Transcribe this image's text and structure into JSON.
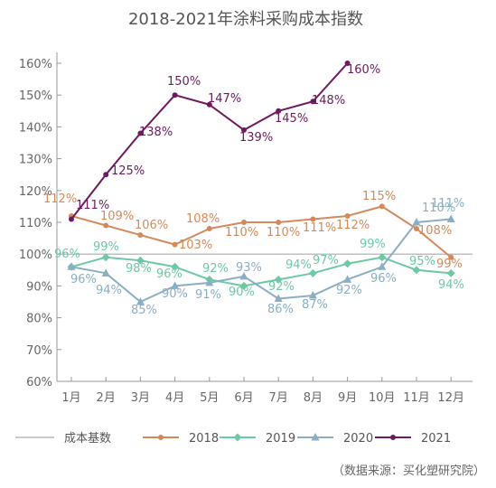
{
  "chart_data": {
    "type": "line",
    "title": "2018-2021年涂料采购成本指数",
    "categories": [
      "1月",
      "2月",
      "3月",
      "4月",
      "5月",
      "6月",
      "7月",
      "8月",
      "9月",
      "10月",
      "11月",
      "12月"
    ],
    "ylim": [
      60,
      160
    ],
    "yticks": [
      "60%",
      "70%",
      "80%",
      "90%",
      "100%",
      "110%",
      "120%",
      "130%",
      "140%",
      "150%",
      "160%"
    ],
    "baseline": {
      "name": "成本基数",
      "value": 100,
      "color": "#aaaaaa"
    },
    "series": [
      {
        "name": "2018",
        "color": "#d4895a",
        "marker": "circle",
        "values": [
          112,
          109,
          106,
          103,
          108,
          110,
          110,
          111,
          112,
          115,
          108,
          99
        ],
        "labels": [
          "112%",
          "109%",
          "106%",
          "103%",
          "108%",
          "110%",
          "110%",
          "111%",
          "112%",
          "115%",
          "108%",
          "99%"
        ]
      },
      {
        "name": "2019",
        "color": "#6cc9a4",
        "marker": "diamond",
        "values": [
          96,
          99,
          98,
          96,
          92,
          90,
          92,
          94,
          97,
          99,
          95,
          94
        ],
        "labels": [
          "96%",
          "99%",
          "98%",
          "96%",
          "92%",
          "90%",
          "92%",
          "94%",
          "97%",
          "99%",
          "95%",
          "94%"
        ]
      },
      {
        "name": "2020",
        "color": "#8aaec4",
        "marker": "triangle",
        "values": [
          96,
          94,
          85,
          90,
          91,
          93,
          86,
          87,
          92,
          96,
          110,
          111
        ],
        "labels": [
          "96%",
          "94%",
          "85%",
          "90%",
          "91%",
          "93%",
          "86%",
          "87%",
          "92%",
          "96%",
          "110%",
          "111%"
        ]
      },
      {
        "name": "2021",
        "color": "#6e1a5e",
        "marker": "circle",
        "values": [
          111,
          125,
          138,
          150,
          147,
          139,
          145,
          148,
          160,
          null,
          null,
          null
        ],
        "labels": [
          "111%",
          "125%",
          "138%",
          "150%",
          "147%",
          "139%",
          "145%",
          "148%",
          "160%",
          null,
          null,
          null
        ]
      }
    ],
    "legend": "bottom",
    "grid": false
  },
  "source_note": "（数据来源：买化塑研究院）"
}
